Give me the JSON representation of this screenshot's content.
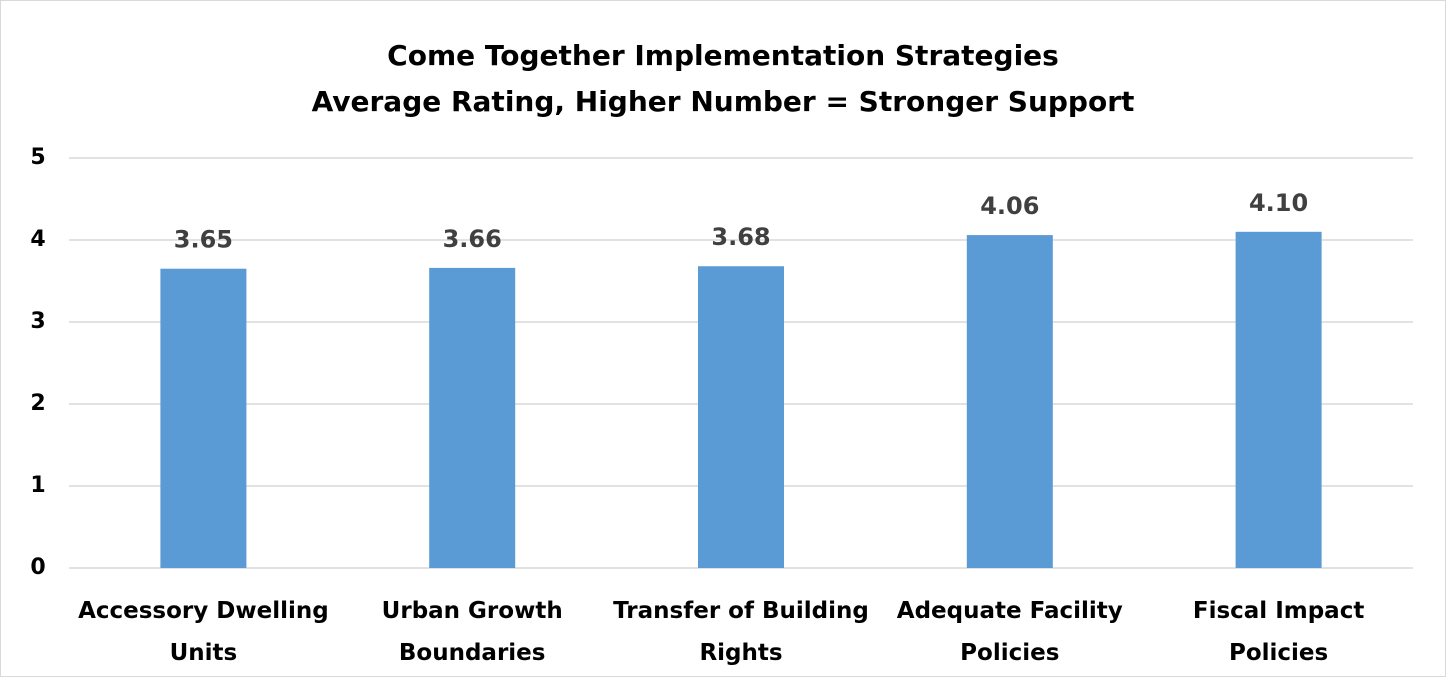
{
  "chart_data": {
    "type": "bar",
    "title": "Come Together Implementation Strategies",
    "subtitle": "Average Rating, Higher Number = Stronger Support",
    "categories": [
      "Accessory Dwelling Units",
      "Urban Growth Boundaries",
      "Transfer of Building Rights",
      "Adequate Facility Policies",
      "Fiscal Impact Policies"
    ],
    "values": [
      3.65,
      3.66,
      3.68,
      4.06,
      4.1
    ],
    "value_labels": [
      "3.65",
      "3.66",
      "3.68",
      "4.06",
      "4.10"
    ],
    "color": "#5b9bd5",
    "ylim": [
      0,
      5
    ],
    "yticks": [
      0,
      1,
      2,
      3,
      4,
      5
    ],
    "grid": true
  }
}
